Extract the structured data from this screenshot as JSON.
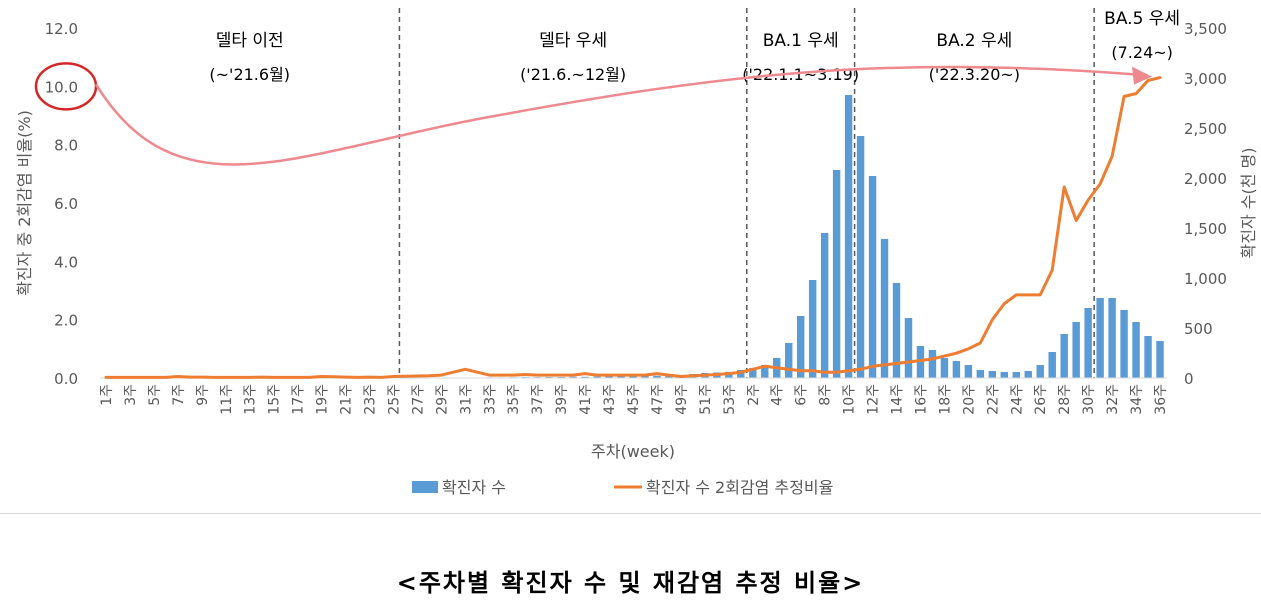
{
  "caption": "<주차별 확진자 수 및 재감염 추정 비율>",
  "colors": {
    "bars": "#5b9bd5",
    "line": "#ed7d31",
    "arrow": "#ee8a8e",
    "circle": "#d62728",
    "axis_text": "#595959",
    "phase_line": "#595959"
  },
  "chart_data": {
    "type": "bar+line",
    "title": "",
    "xlabel": "주차(week)",
    "ylabel_left": "확진자 중 2회감염 비율(%)",
    "ylabel_right": "확진자 수(천 명)",
    "ylim_left": [
      0,
      12
    ],
    "ylim_right": [
      0,
      3500
    ],
    "left_ticks": [
      "0.0",
      "2.0",
      "4.0",
      "6.0",
      "8.0",
      "10.0",
      "12.0"
    ],
    "left_tick_values": [
      0,
      2,
      4,
      6,
      8,
      10,
      12
    ],
    "right_ticks": [
      "0",
      "500",
      "1,000",
      "1,500",
      "2,000",
      "2,500",
      "3,000",
      "3,500"
    ],
    "right_tick_values": [
      0,
      500,
      1000,
      1500,
      2000,
      2500,
      3000,
      3500
    ],
    "categories": [
      "1주",
      "2주",
      "3주",
      "4주",
      "5주",
      "6주",
      "7주",
      "8주",
      "9주",
      "10주",
      "11주",
      "12주",
      "13주",
      "14주",
      "15주",
      "16주",
      "17주",
      "18주",
      "19주",
      "20주",
      "21주",
      "22주",
      "23주",
      "24주",
      "25주",
      "26주",
      "27주",
      "28주",
      "29주",
      "30주",
      "31주",
      "32주",
      "33주",
      "34주",
      "35주",
      "36주",
      "37주",
      "38주",
      "39주",
      "40주",
      "41주",
      "42주",
      "43주",
      "44주",
      "45주",
      "46주",
      "47주",
      "48주",
      "49주",
      "50주",
      "51주",
      "52주",
      "53주",
      "1주",
      "2주",
      "3주",
      "4주",
      "5주",
      "6주",
      "7주",
      "8주",
      "9주",
      "10주",
      "11주",
      "12주",
      "13주",
      "14주",
      "15주",
      "16주",
      "17주",
      "18주",
      "19주",
      "20주",
      "21주",
      "22주",
      "23주",
      "24주",
      "25주",
      "26주",
      "27주",
      "28주",
      "29주",
      "30주",
      "31주",
      "32주",
      "33주",
      "34주",
      "35주",
      "36주"
    ],
    "tick_labels": [
      "1주",
      "3주",
      "5주",
      "7주",
      "9주",
      "11주",
      "13주",
      "15주",
      "17주",
      "19주",
      "21주",
      "23주",
      "25주",
      "27주",
      "29주",
      "31주",
      "33주",
      "35주",
      "37주",
      "39주",
      "41주",
      "43주",
      "45주",
      "47주",
      "49주",
      "51주",
      "53주",
      "2주",
      "4주",
      "6주",
      "8주",
      "10주",
      "12주",
      "14주",
      "16주",
      "18주",
      "20주",
      "22주",
      "24주",
      "26주",
      "28주",
      "30주",
      "32주",
      "34주",
      "36주"
    ],
    "series": [
      {
        "name": "확진자 수",
        "type": "bar",
        "axis": "right",
        "values": [
          2,
          2,
          2,
          2,
          2,
          2,
          2,
          2,
          2,
          2,
          2,
          2,
          2,
          2,
          2,
          2,
          2,
          2,
          2,
          2,
          2,
          2,
          2,
          2,
          3,
          3,
          3,
          3,
          3,
          4,
          5,
          5,
          6,
          6,
          7,
          8,
          8,
          10,
          10,
          12,
          12,
          14,
          15,
          16,
          18,
          20,
          22,
          25,
          30,
          40,
          50,
          55,
          60,
          80,
          100,
          130,
          200,
          350,
          620,
          980,
          1450,
          2080,
          2830,
          2420,
          2020,
          1390,
          950,
          600,
          320,
          280,
          200,
          170,
          130,
          80,
          70,
          60,
          60,
          70,
          130,
          260,
          440,
          560,
          700,
          800,
          800,
          680,
          560,
          420,
          370
        ]
      },
      {
        "name": "확진자 수 2회감염 추정비율",
        "type": "line",
        "axis": "left",
        "values": [
          0.02,
          0.02,
          0.02,
          0.02,
          0.02,
          0.02,
          0.05,
          0.03,
          0.03,
          0.02,
          0.02,
          0.02,
          0.02,
          0.03,
          0.02,
          0.02,
          0.02,
          0.02,
          0.05,
          0.04,
          0.03,
          0.02,
          0.03,
          0.02,
          0.05,
          0.06,
          0.07,
          0.08,
          0.1,
          0.2,
          0.3,
          0.2,
          0.1,
          0.1,
          0.1,
          0.12,
          0.1,
          0.1,
          0.1,
          0.1,
          0.15,
          0.1,
          0.1,
          0.1,
          0.1,
          0.1,
          0.15,
          0.1,
          0.05,
          0.08,
          0.1,
          0.12,
          0.15,
          0.2,
          0.3,
          0.4,
          0.35,
          0.3,
          0.25,
          0.25,
          0.2,
          0.2,
          0.25,
          0.3,
          0.4,
          0.45,
          0.5,
          0.55,
          0.6,
          0.65,
          0.75,
          0.85,
          1.0,
          1.2,
          2.0,
          2.55,
          2.85,
          2.85,
          2.85,
          3.7,
          6.55,
          5.4,
          6.1,
          6.65,
          7.6,
          9.65,
          9.75,
          10.2,
          10.3
        ]
      }
    ],
    "legend": [
      "확진자 수",
      "확진자 수 2회감염 추정비율"
    ],
    "legend_position": "bottom-center",
    "phase_boundaries_after": [
      24,
      53,
      62,
      82
    ],
    "phases": [
      {
        "title": "델타 이전",
        "sub": "(~'21.6월)"
      },
      {
        "title": "델타 우세",
        "sub": "('21.6.~12월)"
      },
      {
        "title": "BA.1 우세",
        "sub": "('22.1.1~3.19)"
      },
      {
        "title": "BA.2 우세",
        "sub": "('22.3.20~)"
      },
      {
        "title": "BA.5 우세",
        "sub": "(7.24~)"
      }
    ],
    "annotation": {
      "circled_tick": "10.0",
      "arrow_to": "last-point"
    }
  }
}
